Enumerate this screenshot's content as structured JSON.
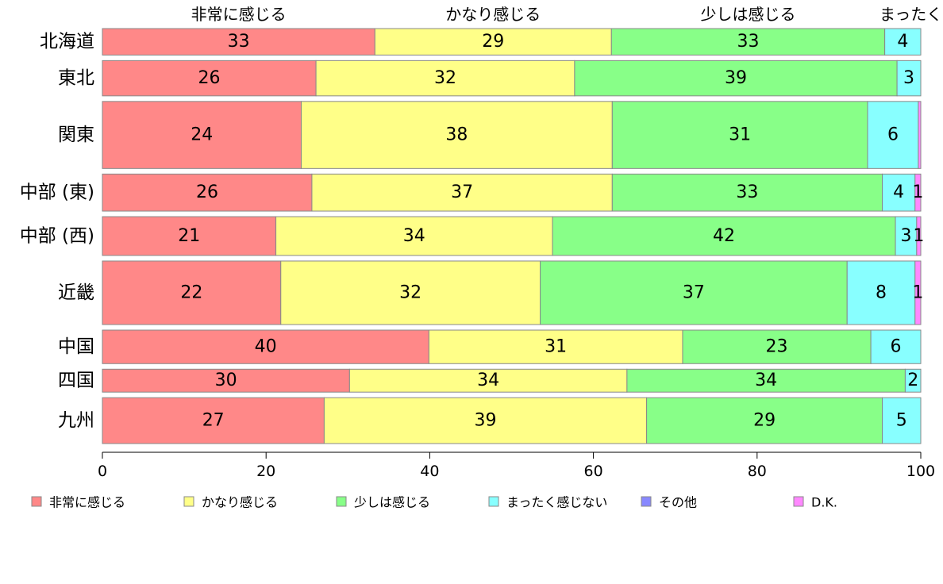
{
  "chart_data": {
    "type": "bar",
    "orientation": "horizontal",
    "stacked": true,
    "categories": [
      "北海道",
      "東北",
      "関東",
      "中部 (東)",
      "中部 (西)",
      "近畿",
      "中国",
      "四国",
      "九州"
    ],
    "series": [
      {
        "name": "非常に感じる",
        "color": "#ff8888",
        "values": [
          33.3,
          26.1,
          24.3,
          25.6,
          21.2,
          21.8,
          39.9,
          30.2,
          27.1
        ]
      },
      {
        "name": "かなり感じる",
        "color": "#ffff88",
        "values": [
          28.9,
          31.6,
          38.0,
          36.7,
          33.8,
          31.7,
          31.0,
          33.9,
          39.4
        ]
      },
      {
        "name": "少しは感じる",
        "color": "#88ff88",
        "values": [
          33.4,
          39.4,
          31.2,
          33.0,
          41.9,
          37.5,
          23.0,
          34.0,
          28.8
        ]
      },
      {
        "name": "まったく感じない",
        "color": "#88ffff",
        "values": [
          4.4,
          2.9,
          6.2,
          4.0,
          2.6,
          8.3,
          6.1,
          1.9,
          4.7
        ]
      },
      {
        "name": "その他",
        "color": "#8888ff",
        "values": [
          0,
          0,
          0,
          0,
          0,
          0,
          0,
          0,
          0
        ]
      },
      {
        "name": "D.K.",
        "color": "#ff88ff",
        "values": [
          0,
          0,
          0.3,
          0.7,
          0.5,
          0.7,
          0,
          0,
          0
        ]
      }
    ],
    "bar_heights_relative": [
      0.75,
      1.0,
      1.9,
      1.05,
      1.1,
      1.8,
      0.95,
      0.65,
      1.3
    ],
    "data_labels": [
      [
        "33",
        "29",
        "33",
        "4",
        "",
        ""
      ],
      [
        "26",
        "32",
        "39",
        "3",
        "",
        ""
      ],
      [
        "24",
        "38",
        "31",
        "6",
        "",
        ""
      ],
      [
        "26",
        "37",
        "33",
        "4",
        "",
        "1"
      ],
      [
        "21",
        "34",
        "42",
        "3",
        "",
        "1"
      ],
      [
        "22",
        "32",
        "37",
        "8",
        "",
        "1"
      ],
      [
        "40",
        "31",
        "23",
        "6",
        "",
        ""
      ],
      [
        "30",
        "34",
        "34",
        "2",
        "",
        ""
      ],
      [
        "27",
        "39",
        "29",
        "5",
        "",
        ""
      ]
    ],
    "top_labels": [
      "非常に感じる",
      "かなり感じる",
      "少しは感じる",
      "まったく..."
    ],
    "x_ticks": [
      "0",
      "20",
      "40",
      "60",
      "80",
      "100"
    ],
    "xlim": [
      0,
      100
    ],
    "legend_position": "bottom",
    "grid": false,
    "xlabel": "",
    "ylabel": "",
    "title": ""
  }
}
